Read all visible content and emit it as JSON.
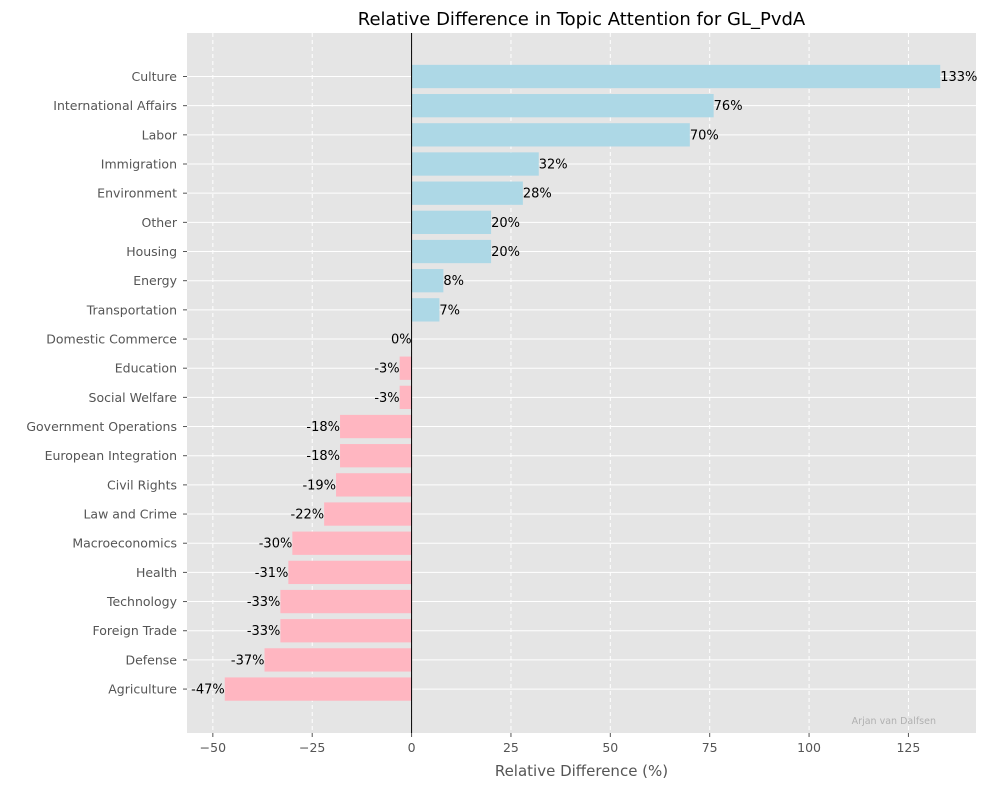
{
  "chart_data": {
    "type": "bar",
    "orientation": "horizontal",
    "title": "Relative Difference in Topic Attention for GL_PvdA",
    "xlabel": "Relative Difference (%)",
    "ylabel": "",
    "xlim": [
      -56.5,
      142
    ],
    "xticks": [
      -50,
      -25,
      0,
      25,
      50,
      75,
      100,
      125
    ],
    "xtick_labels": [
      "−50",
      "−25",
      "0",
      "25",
      "50",
      "75",
      "100",
      "125"
    ],
    "grid": true,
    "legend": "none",
    "categories": [
      "Culture",
      "International Affairs",
      "Labor",
      "Immigration",
      "Environment",
      "Other",
      "Housing",
      "Energy",
      "Transportation",
      "Domestic Commerce",
      "Education",
      "Social Welfare",
      "Government Operations",
      "European Integration",
      "Civil Rights",
      "Law and Crime",
      "Macroeconomics",
      "Health",
      "Technology",
      "Foreign Trade",
      "Defense",
      "Agriculture"
    ],
    "values": [
      133,
      76,
      70,
      32,
      28,
      20,
      20,
      8,
      7,
      0,
      -3,
      -3,
      -18,
      -18,
      -19,
      -22,
      -30,
      -31,
      -33,
      -33,
      -37,
      -47
    ],
    "data_labels": [
      "133%",
      "76%",
      "70%",
      "32%",
      "28%",
      "20%",
      "20%",
      "8%",
      "7%",
      "0%",
      "-3%",
      "-3%",
      "-18%",
      "-18%",
      "-19%",
      "-22%",
      "-30%",
      "-31%",
      "-33%",
      "-33%",
      "-37%",
      "-47%"
    ],
    "colors": {
      "positive": "#add8e6",
      "negative": "#ffb6c1",
      "background": "#e5e5e5",
      "grid": "#ffffff",
      "zero_line": "#000000"
    },
    "watermark": "Arjan van Dalfsen"
  }
}
